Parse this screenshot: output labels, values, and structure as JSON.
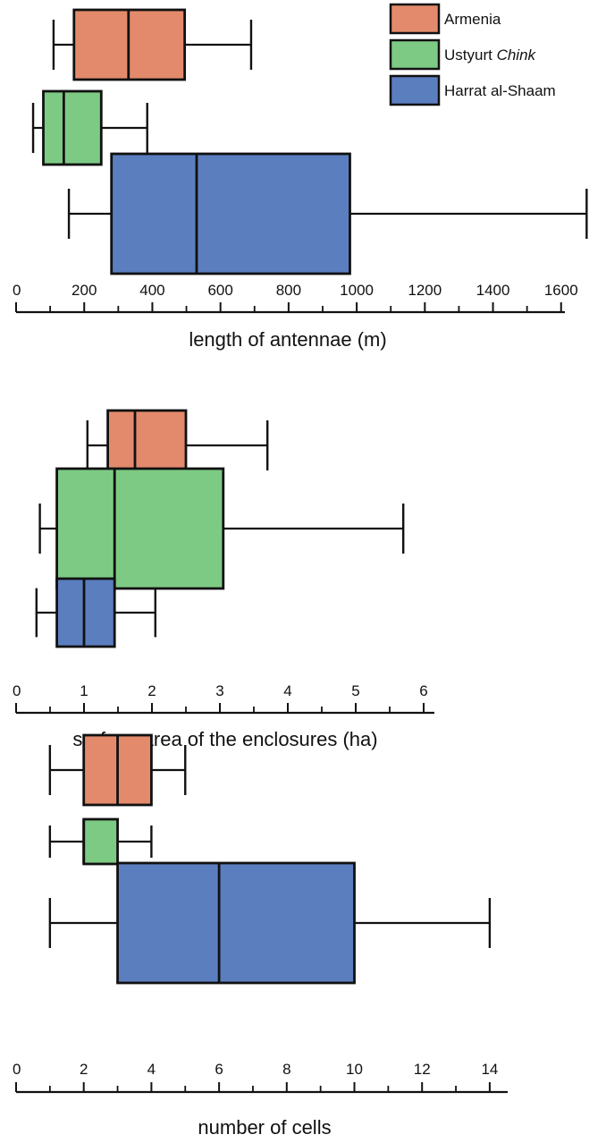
{
  "legend": {
    "placement": "top-right",
    "entries": [
      {
        "name": "Armenia",
        "name_plain": "Ustyurt ",
        "color": "#e38a6c"
      },
      {
        "name": "Ustyurt Chink",
        "name_plain": "Ustyurt ",
        "name_italic": "Chink",
        "color": "#7dca84"
      },
      {
        "name": "Harrat al-Shaam",
        "color": "#5b7ebf"
      }
    ]
  },
  "chart_data": [
    {
      "type": "box",
      "xlabel": "length of antennae (m)",
      "xlim": [
        0,
        1630
      ],
      "xticks": [
        0,
        200,
        400,
        600,
        800,
        1000,
        1200,
        1400,
        1600
      ],
      "minor_ticks": [
        100,
        300,
        500,
        700,
        900,
        1100,
        1300,
        1500
      ],
      "series": [
        {
          "name": "Armenia",
          "min": 110,
          "q1": 170,
          "median": 330,
          "q3": 495,
          "max": 690
        },
        {
          "name": "Ustyurt Chink",
          "min": 50,
          "q1": 80,
          "median": 140,
          "q3": 250,
          "max": 385
        },
        {
          "name": "Harrat al-Shaam",
          "min": 155,
          "q1": 280,
          "median": 530,
          "q3": 980,
          "max": 1675
        }
      ]
    },
    {
      "type": "box",
      "xlabel": "surface area of the enclosures (ha)",
      "xlim": [
        0,
        6.25
      ],
      "xticks": [
        0,
        1,
        2,
        3,
        4,
        5,
        6
      ],
      "minor_ticks": [
        0.5,
        1.5,
        2.5,
        3.5,
        4.5,
        5.5
      ],
      "series": [
        {
          "name": "Armenia",
          "min": 1.05,
          "q1": 1.35,
          "median": 1.75,
          "q3": 2.5,
          "max": 3.7
        },
        {
          "name": "Ustyurt Chink",
          "min": 0.35,
          "q1": 0.6,
          "median": 1.45,
          "q3": 3.05,
          "max": 5.7
        },
        {
          "name": "Harrat al-Shaam",
          "min": 0.3,
          "q1": 0.6,
          "median": 1.0,
          "q3": 1.45,
          "max": 2.05
        }
      ]
    },
    {
      "type": "box",
      "xlabel": "number of cells",
      "xlim": [
        0,
        14.75
      ],
      "xticks": [
        0,
        2,
        4,
        6,
        8,
        10,
        12,
        14
      ],
      "minor_ticks": [
        1,
        3,
        5,
        7,
        9,
        11,
        13
      ],
      "series": [
        {
          "name": "Armenia",
          "min": 1,
          "q1": 2,
          "median": 3,
          "q3": 4,
          "max": 5
        },
        {
          "name": "Ustyurt Chink",
          "min": 1,
          "q1": 2,
          "median": 2,
          "q3": 3,
          "max": 4
        },
        {
          "name": "Harrat al-Shaam",
          "min": 1,
          "q1": 3,
          "median": 6,
          "q3": 10,
          "max": 14
        }
      ]
    }
  ]
}
